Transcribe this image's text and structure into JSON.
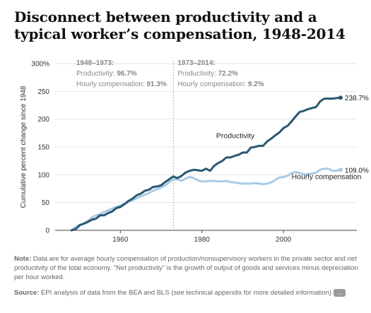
{
  "chart_data": {
    "type": "line",
    "title": "Disconnect between productivity and a typical worker’s compensation, 1948-2014",
    "ylabel": "Cumulative percent change since 1948",
    "xlabel": "",
    "xlim": [
      1944,
      2018
    ],
    "ylim": [
      0,
      300
    ],
    "xticks": [
      1960,
      1980,
      2000
    ],
    "yticks": [
      0,
      50,
      100,
      150,
      200,
      250,
      300
    ],
    "ytick_labels": [
      "0",
      "50",
      "100",
      "150",
      "200",
      "250",
      "300%"
    ],
    "grid": "horizontal",
    "divider_year": 1973,
    "period_labels": [
      {
        "heading": "1948–1973:",
        "line1_label": "Productivity: ",
        "line1_value": "96.7%",
        "line2_label": "Hourly compensation: ",
        "line2_value": "91.3%"
      },
      {
        "heading": "1973–2014:",
        "line1_label": "Productivity: ",
        "line1_value": "72.2%",
        "line2_label": "Hourly compensation: ",
        "line2_value": "9.2%"
      }
    ],
    "series": [
      {
        "name": "Productivity",
        "color": "#2a5873",
        "end_label": "238.7%",
        "x": [
          1948,
          1949,
          1950,
          1951,
          1952,
          1953,
          1954,
          1955,
          1956,
          1957,
          1958,
          1959,
          1960,
          1961,
          1962,
          1963,
          1964,
          1965,
          1966,
          1967,
          1968,
          1969,
          1970,
          1971,
          1972,
          1973,
          1974,
          1975,
          1976,
          1977,
          1978,
          1979,
          1980,
          1981,
          1982,
          1983,
          1984,
          1985,
          1986,
          1987,
          1988,
          1989,
          1990,
          1991,
          1992,
          1993,
          1994,
          1995,
          1996,
          1997,
          1998,
          1999,
          2000,
          2001,
          2002,
          2003,
          2004,
          2005,
          2006,
          2007,
          2008,
          2009,
          2010,
          2011,
          2012,
          2013,
          2014
        ],
        "values": [
          0,
          2,
          9,
          12,
          15,
          19,
          21,
          27,
          27,
          31,
          34,
          40,
          42,
          47,
          53,
          57,
          63,
          66,
          71,
          73,
          78,
          79,
          81,
          87,
          92,
          97,
          94,
          98,
          104,
          107,
          109,
          108,
          107,
          111,
          107,
          116,
          121,
          125,
          131,
          131,
          134,
          136,
          140,
          140,
          149,
          150,
          152,
          152,
          160,
          165,
          171,
          176,
          184,
          188,
          196,
          205,
          213,
          215,
          218,
          220,
          222,
          232,
          237,
          237,
          237,
          238,
          238.7
        ]
      },
      {
        "name": "Hourly compensation",
        "color": "#a8cbe6",
        "end_label": "109.0%",
        "x": [
          1948,
          1949,
          1950,
          1951,
          1952,
          1953,
          1954,
          1955,
          1956,
          1957,
          1958,
          1959,
          1960,
          1961,
          1962,
          1963,
          1964,
          1965,
          1966,
          1967,
          1968,
          1969,
          1970,
          1971,
          1972,
          1973,
          1974,
          1975,
          1976,
          1977,
          1978,
          1979,
          1980,
          1981,
          1982,
          1983,
          1984,
          1985,
          1986,
          1987,
          1988,
          1989,
          1990,
          1991,
          1992,
          1993,
          1994,
          1995,
          1996,
          1997,
          1998,
          1999,
          2000,
          2001,
          2002,
          2003,
          2004,
          2005,
          2006,
          2007,
          2008,
          2009,
          2010,
          2011,
          2012,
          2013,
          2014
        ],
        "values": [
          0,
          6,
          10,
          12,
          17,
          23,
          27,
          29,
          33,
          36,
          39,
          42,
          45,
          48,
          51,
          54,
          58,
          61,
          64,
          67,
          71,
          74,
          77,
          81,
          87,
          91.3,
          92,
          89,
          93,
          96,
          94,
          90,
          88,
          88,
          89,
          89,
          88,
          88,
          89,
          87,
          86,
          85,
          84,
          84,
          84,
          85,
          84,
          83,
          84,
          86,
          91,
          95,
          96,
          98,
          103,
          105,
          103,
          101,
          101,
          102,
          104,
          109,
          111,
          111,
          107,
          107,
          109
        ]
      }
    ]
  },
  "note": {
    "label": "Note:",
    "text": " Data are for average hourly compensation of production/nonsupervisory workers in the private sector and net productivity of the total economy. \"Net productivity\" is the growth of output of goods and services minus depreciation per hour worked."
  },
  "source": {
    "label": "Source:",
    "text": " EPI analysis of data from the BEA and BLS (see technical appendix for more detailed information)",
    "more_label": "…"
  }
}
